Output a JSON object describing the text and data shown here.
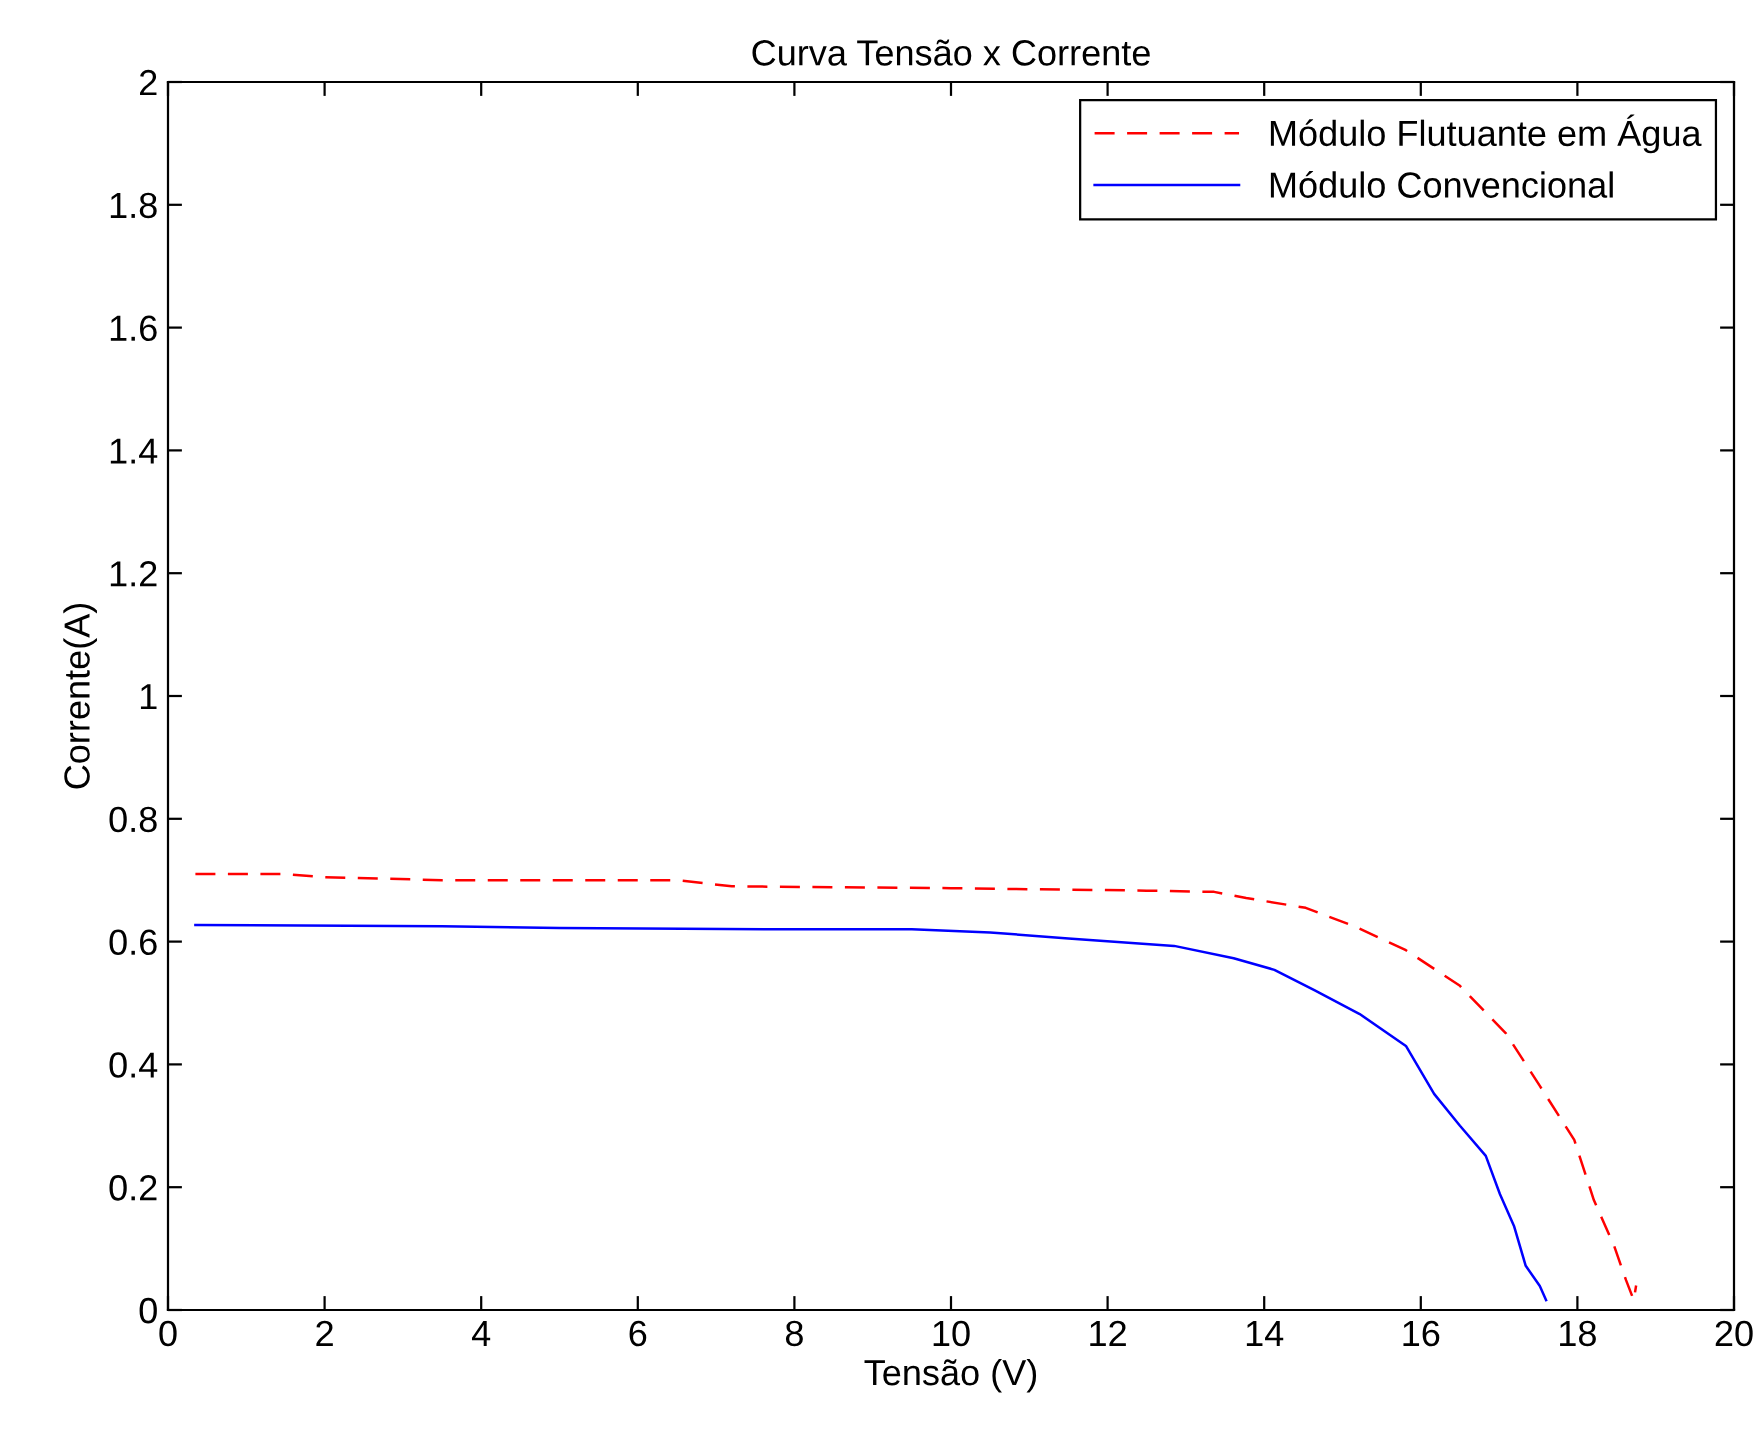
{
  "chart_data": {
    "type": "line",
    "title": "Curva Tensão x Corrente",
    "xlabel": "Tensão (V)",
    "ylabel": "Corrente(A)",
    "xlim": [
      0,
      20
    ],
    "xticks": [
      0,
      2,
      4,
      6,
      8,
      10,
      12,
      14,
      16,
      18,
      20
    ],
    "ylim": [
      0,
      2
    ],
    "yticks": [
      0,
      0.2,
      0.4,
      0.6,
      0.8,
      1,
      1.2,
      1.4,
      1.6,
      1.8,
      2
    ],
    "grid": false,
    "legend": "top right",
    "series": [
      {
        "name": "Módulo Flutuante em Água",
        "color": "#ff0000",
        "line_style": "dashed",
        "x": [
          0.35,
          1.5,
          2,
          3.5,
          6.5,
          7.2,
          10,
          12.5,
          13.36,
          13.77,
          14.53,
          15.15,
          15.81,
          16.5,
          17.09,
          17.52,
          17.96,
          18.21,
          18.47,
          18.62,
          18.72,
          18.75
        ],
        "values": [
          0.71,
          0.71,
          0.705,
          0.7,
          0.7,
          0.69,
          0.687,
          0.683,
          0.681,
          0.671,
          0.655,
          0.625,
          0.586,
          0.528,
          0.45,
          0.365,
          0.277,
          0.179,
          0.104,
          0.049,
          0.016,
          0.04
        ]
      },
      {
        "name": "Módulo Convencional",
        "color": "#0000ff",
        "line_style": "solid",
        "x": [
          0.35,
          3.5,
          5,
          8,
          9.5,
          10.5,
          11.5,
          12.85,
          13.61,
          14.13,
          14.64,
          15.22,
          15.81,
          16.17,
          16.5,
          16.83,
          17.01,
          17.19,
          17.34,
          17.52,
          17.6
        ],
        "values": [
          0.627,
          0.625,
          0.622,
          0.62,
          0.62,
          0.615,
          0.605,
          0.593,
          0.573,
          0.554,
          0.521,
          0.482,
          0.43,
          0.352,
          0.3,
          0.251,
          0.189,
          0.137,
          0.072,
          0.039,
          0.016
        ]
      }
    ]
  }
}
